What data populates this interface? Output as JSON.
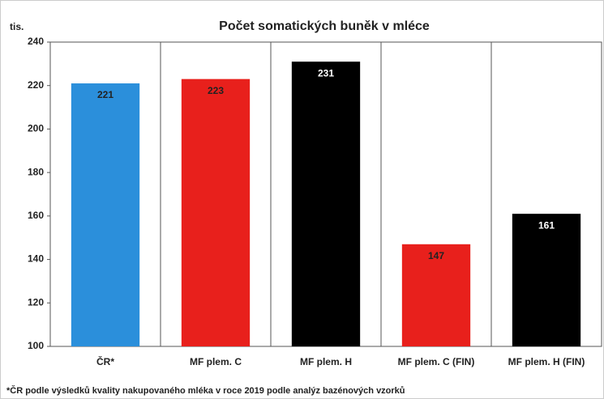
{
  "chart_data": {
    "type": "bar",
    "title": "Počet somatických buněk v mléce",
    "y_unit": "tis.",
    "categories": [
      "ČR*",
      "MF plem. C",
      "MF plem. H",
      "MF plem. C (FIN)",
      "MF plem. H (FIN)"
    ],
    "values": [
      221,
      223,
      231,
      147,
      161
    ],
    "colors": [
      "#2b8fdb",
      "#e8201c",
      "#000000",
      "#e8201c",
      "#000000"
    ],
    "ylim": [
      100,
      240
    ],
    "yticks": [
      100,
      120,
      140,
      160,
      180,
      200,
      220,
      240
    ],
    "grid": false,
    "footnote": "*ČR podle výsledků kvality nakupovaného mléka v roce 2019 podle analýz bazénových vzorků"
  }
}
